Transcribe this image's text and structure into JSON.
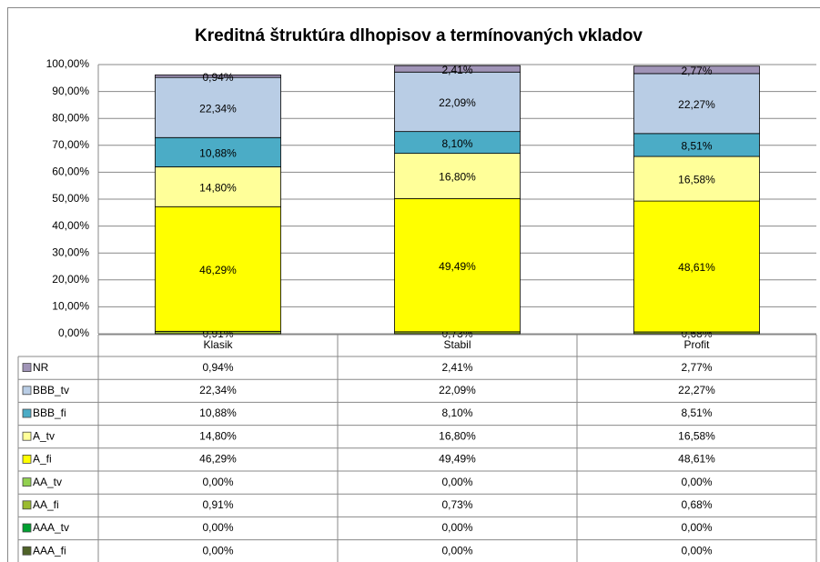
{
  "chart_data": {
    "type": "stacked_bar",
    "title": "Kreditná štruktúra dlhopisov a termínovaných vkladov",
    "categories": [
      "Klasik",
      "Stabil",
      "Profit"
    ],
    "ylim": [
      0,
      100
    ],
    "yticks": [
      {
        "value": 0,
        "label": "0,00%"
      },
      {
        "value": 10,
        "label": "10,00%"
      },
      {
        "value": 20,
        "label": "20,00%"
      },
      {
        "value": 30,
        "label": "30,00%"
      },
      {
        "value": 40,
        "label": "40,00%"
      },
      {
        "value": 50,
        "label": "50,00%"
      },
      {
        "value": 60,
        "label": "60,00%"
      },
      {
        "value": 70,
        "label": "70,00%"
      },
      {
        "value": 80,
        "label": "80,00%"
      },
      {
        "value": 90,
        "label": "90,00%"
      },
      {
        "value": 100,
        "label": "100,00%"
      }
    ],
    "grid": true,
    "series": [
      {
        "name": "NR",
        "color": "#a094b7",
        "values": [
          0.94,
          2.41,
          2.77
        ],
        "value_labels": [
          "0,94%",
          "2,41%",
          "2,77%"
        ]
      },
      {
        "name": "BBB_tv",
        "color": "#b9cde5",
        "values": [
          22.34,
          22.09,
          22.27
        ],
        "value_labels": [
          "22,34%",
          "22,09%",
          "22,27%"
        ]
      },
      {
        "name": "BBB_fi",
        "color": "#4bacc6",
        "values": [
          10.88,
          8.1,
          8.51
        ],
        "value_labels": [
          "10,88%",
          "8,10%",
          "8,51%"
        ]
      },
      {
        "name": "A_tv",
        "color": "#ffff99",
        "values": [
          14.8,
          16.8,
          16.58
        ],
        "value_labels": [
          "14,80%",
          "16,80%",
          "16,58%"
        ]
      },
      {
        "name": "A_fi",
        "color": "#ffff00",
        "values": [
          46.29,
          49.49,
          48.61
        ],
        "value_labels": [
          "46,29%",
          "49,49%",
          "48,61%"
        ]
      },
      {
        "name": "AA_tv",
        "color": "#92d050",
        "values": [
          0,
          0,
          0
        ],
        "value_labels": [
          "0,00%",
          "0,00%",
          "0,00%"
        ]
      },
      {
        "name": "AA_fi",
        "color": "#9bbb30",
        "values": [
          0.91,
          0.73,
          0.68
        ],
        "value_labels": [
          "0,91%",
          "0,73%",
          "0,68%"
        ]
      },
      {
        "name": "AAA_tv",
        "color": "#00a030",
        "values": [
          0,
          0,
          0
        ],
        "value_labels": [
          "0,00%",
          "0,00%",
          "0,00%"
        ]
      },
      {
        "name": "AAA_fi",
        "color": "#4f6228",
        "values": [
          0,
          0,
          0
        ],
        "value_labels": [
          "0,00%",
          "0,00%",
          "0,00%"
        ]
      }
    ]
  }
}
